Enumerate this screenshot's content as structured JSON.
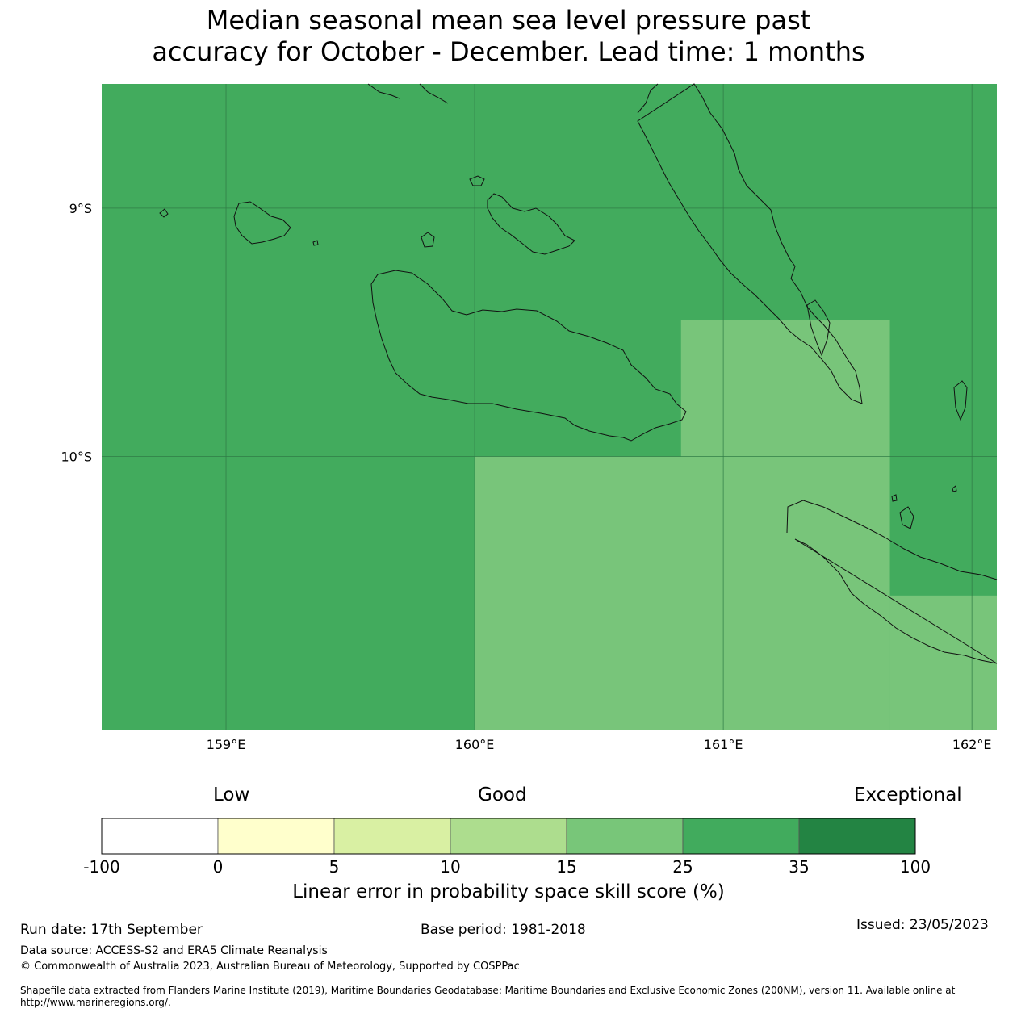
{
  "title_lines": [
    "Median seasonal mean sea level pressure past",
    "accuracy for October - December. Lead time: 1 months"
  ],
  "map": {
    "lon_range": [
      158.5,
      162.1
    ],
    "lat_range": [
      -11.1,
      -8.5
    ],
    "x_ticks": [
      {
        "value": 159,
        "label": "159°E"
      },
      {
        "value": 160,
        "label": "160°E"
      },
      {
        "value": 161,
        "label": "161°E"
      },
      {
        "value": 162,
        "label": "162°E"
      }
    ],
    "y_ticks": [
      {
        "value": -9,
        "label": "9°S"
      },
      {
        "value": -10,
        "label": "10°S"
      }
    ],
    "grid": true,
    "skill_cells": [
      {
        "lon": [
          158.5,
          162.1
        ],
        "lat": [
          -11.1,
          -8.5
        ],
        "class": "25-35"
      },
      {
        "lon": [
          160.0,
          161.67
        ],
        "lat": [
          -11.1,
          -10.0
        ],
        "class": "15-25"
      },
      {
        "lon": [
          160.83,
          161.67
        ],
        "lat": [
          -10.0,
          -9.45
        ],
        "class": "15-25"
      },
      {
        "lon": [
          161.67,
          162.1
        ],
        "lat": [
          -11.1,
          -10.56
        ],
        "class": "15-25"
      }
    ],
    "colors": {
      "15-25": "#78c57a",
      "25-35": "#42ab5d",
      "coast": "#111111",
      "grid": "#2f7a45"
    }
  },
  "colorbar": {
    "categories": [
      "Low",
      "Good",
      "Exceptional"
    ],
    "ticks": [
      "-100",
      "0",
      "5",
      "10",
      "15",
      "25",
      "35",
      "100"
    ],
    "colors": [
      "#ffffff",
      "#ffffcc",
      "#d9f0a3",
      "#addd8e",
      "#78c679",
      "#41ab5d",
      "#238443"
    ],
    "label": "Linear error in probability space skill score (%)"
  },
  "footer": {
    "run_date": "Run date: 17th September",
    "base_period": "Base period: 1981-2018",
    "issued": "Issued: 23/05/2023",
    "data_source": "Data source: ACCESS-S2 and ERA5 Climate Reanalysis",
    "copyright": "© Commonwealth of Australia 2023, Australian Bureau of Meteorology, Supported by COSPPac",
    "shapefile_line1": "Shapefile data extracted from Flanders Marine Institute (2019), Maritime Boundaries Geodatabase: Maritime Boundaries and Exclusive Economic Zones (200NM), version 11. Available online at",
    "shapefile_line2": "http://www.marineregions.org/."
  }
}
